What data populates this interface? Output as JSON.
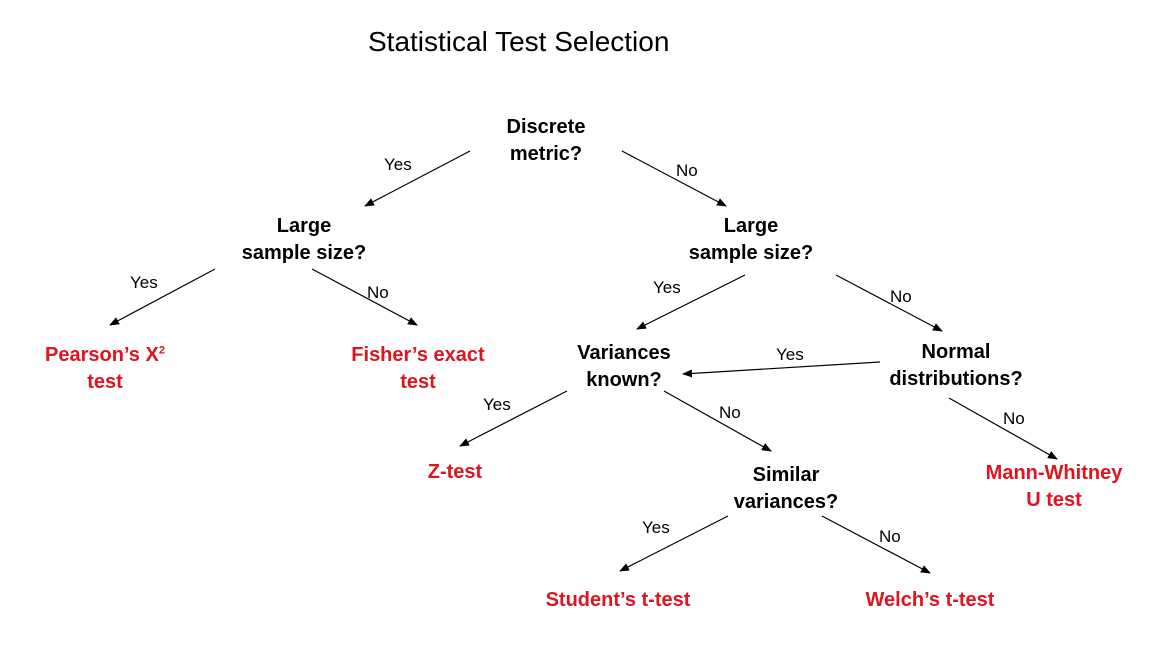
{
  "title": "Statistical Test Selection",
  "colors": {
    "question": "#000000",
    "result": "#e0141e",
    "arrow": "#000000"
  },
  "nodes": {
    "discrete": {
      "line1": "Discrete",
      "line2": "metric?"
    },
    "large_left": {
      "line1": "Large",
      "line2": "sample size?"
    },
    "large_right": {
      "line1": "Large",
      "line2": "sample size?"
    },
    "pearson": {
      "line1": "Pearson’s X",
      "sup": "2",
      "line2": "test"
    },
    "fisher": {
      "line1": "Fisher’s exact",
      "line2": "test"
    },
    "variances_known": {
      "line1": "Variances",
      "line2": "known?"
    },
    "normal": {
      "line1": "Normal",
      "line2": "distributions?"
    },
    "ztest": {
      "line1": "Z-test"
    },
    "similar": {
      "line1": "Similar",
      "line2": "variances?"
    },
    "mann": {
      "line1": "Mann-Whitney",
      "line2": "U test"
    },
    "student": {
      "line1": "Student’s t-test"
    },
    "welch": {
      "line1": "Welch’s t-test"
    }
  },
  "edge_labels": {
    "discrete_yes": "Yes",
    "discrete_no": "No",
    "large_left_yes": "Yes",
    "large_left_no": "No",
    "large_right_yes": "Yes",
    "large_right_no": "No",
    "normal_yes": "Yes",
    "normal_no": "No",
    "variances_yes": "Yes",
    "variances_no": "No",
    "similar_yes": "Yes",
    "similar_no": "No"
  }
}
